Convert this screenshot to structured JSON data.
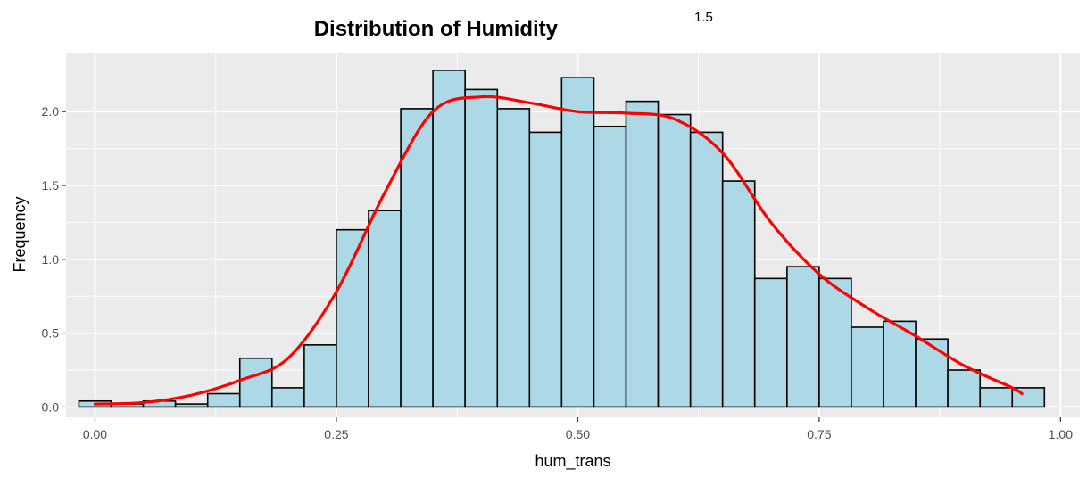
{
  "chart_data": {
    "type": "bar",
    "title": "Distribution of Humidity",
    "title_superscript": "1.5",
    "xlabel": "hum_trans",
    "ylabel": "Frequency",
    "xlim": [
      -0.03,
      1.02
    ],
    "ylim": [
      -0.07,
      2.4
    ],
    "x_ticks": [
      0.0,
      0.25,
      0.5,
      0.75,
      1.0
    ],
    "x_tick_labels": [
      "0.00",
      "0.25",
      "0.50",
      "0.75",
      "1.00"
    ],
    "y_ticks": [
      0.0,
      0.5,
      1.0,
      1.5,
      2.0
    ],
    "y_tick_labels": [
      "0.0",
      "0.5",
      "1.0",
      "1.5",
      "2.0"
    ],
    "grid": true,
    "bin_width": 0.0333,
    "bins": [
      {
        "x0": -0.0167,
        "x1": 0.0167,
        "value": 0.04
      },
      {
        "x0": 0.0167,
        "x1": 0.05,
        "value": 0.02
      },
      {
        "x0": 0.05,
        "x1": 0.0833,
        "value": 0.04
      },
      {
        "x0": 0.0833,
        "x1": 0.1167,
        "value": 0.02
      },
      {
        "x0": 0.1167,
        "x1": 0.15,
        "value": 0.09
      },
      {
        "x0": 0.15,
        "x1": 0.1833,
        "value": 0.33
      },
      {
        "x0": 0.1833,
        "x1": 0.2167,
        "value": 0.13
      },
      {
        "x0": 0.2167,
        "x1": 0.25,
        "value": 0.42
      },
      {
        "x0": 0.25,
        "x1": 0.2833,
        "value": 1.2
      },
      {
        "x0": 0.2833,
        "x1": 0.3167,
        "value": 1.33
      },
      {
        "x0": 0.3167,
        "x1": 0.35,
        "value": 2.02
      },
      {
        "x0": 0.35,
        "x1": 0.3833,
        "value": 2.28
      },
      {
        "x0": 0.3833,
        "x1": 0.4167,
        "value": 2.15
      },
      {
        "x0": 0.4167,
        "x1": 0.45,
        "value": 2.02
      },
      {
        "x0": 0.45,
        "x1": 0.4833,
        "value": 1.86
      },
      {
        "x0": 0.4833,
        "x1": 0.5167,
        "value": 2.23
      },
      {
        "x0": 0.5167,
        "x1": 0.55,
        "value": 1.9
      },
      {
        "x0": 0.55,
        "x1": 0.5833,
        "value": 2.07
      },
      {
        "x0": 0.5833,
        "x1": 0.6167,
        "value": 1.98
      },
      {
        "x0": 0.6167,
        "x1": 0.65,
        "value": 1.86
      },
      {
        "x0": 0.65,
        "x1": 0.6833,
        "value": 1.53
      },
      {
        "x0": 0.6833,
        "x1": 0.7167,
        "value": 0.87
      },
      {
        "x0": 0.7167,
        "x1": 0.75,
        "value": 0.95
      },
      {
        "x0": 0.75,
        "x1": 0.7833,
        "value": 0.87
      },
      {
        "x0": 0.7833,
        "x1": 0.8167,
        "value": 0.54
      },
      {
        "x0": 0.8167,
        "x1": 0.85,
        "value": 0.58
      },
      {
        "x0": 0.85,
        "x1": 0.8833,
        "value": 0.46
      },
      {
        "x0": 0.8833,
        "x1": 0.9167,
        "value": 0.25
      },
      {
        "x0": 0.9167,
        "x1": 0.95,
        "value": 0.13
      },
      {
        "x0": 0.95,
        "x1": 0.9833,
        "value": 0.13
      }
    ],
    "density_curve": [
      [
        0.0,
        0.02
      ],
      [
        0.05,
        0.03
      ],
      [
        0.1,
        0.08
      ],
      [
        0.15,
        0.18
      ],
      [
        0.2,
        0.33
      ],
      [
        0.25,
        0.78
      ],
      [
        0.3,
        1.45
      ],
      [
        0.35,
        2.0
      ],
      [
        0.4,
        2.1
      ],
      [
        0.45,
        2.06
      ],
      [
        0.5,
        2.0
      ],
      [
        0.55,
        1.99
      ],
      [
        0.6,
        1.95
      ],
      [
        0.65,
        1.72
      ],
      [
        0.7,
        1.25
      ],
      [
        0.75,
        0.9
      ],
      [
        0.8,
        0.67
      ],
      [
        0.85,
        0.48
      ],
      [
        0.9,
        0.28
      ],
      [
        0.95,
        0.13
      ],
      [
        0.96,
        0.09
      ]
    ],
    "colors": {
      "panel_background": "#ebebeb",
      "grid_major": "#ffffff",
      "bar_fill": "#add8e6",
      "bar_outline": "#000000",
      "density_line": "#ff0000",
      "tick_label": "#4d4d4d",
      "tick_mark": "#333333"
    }
  }
}
